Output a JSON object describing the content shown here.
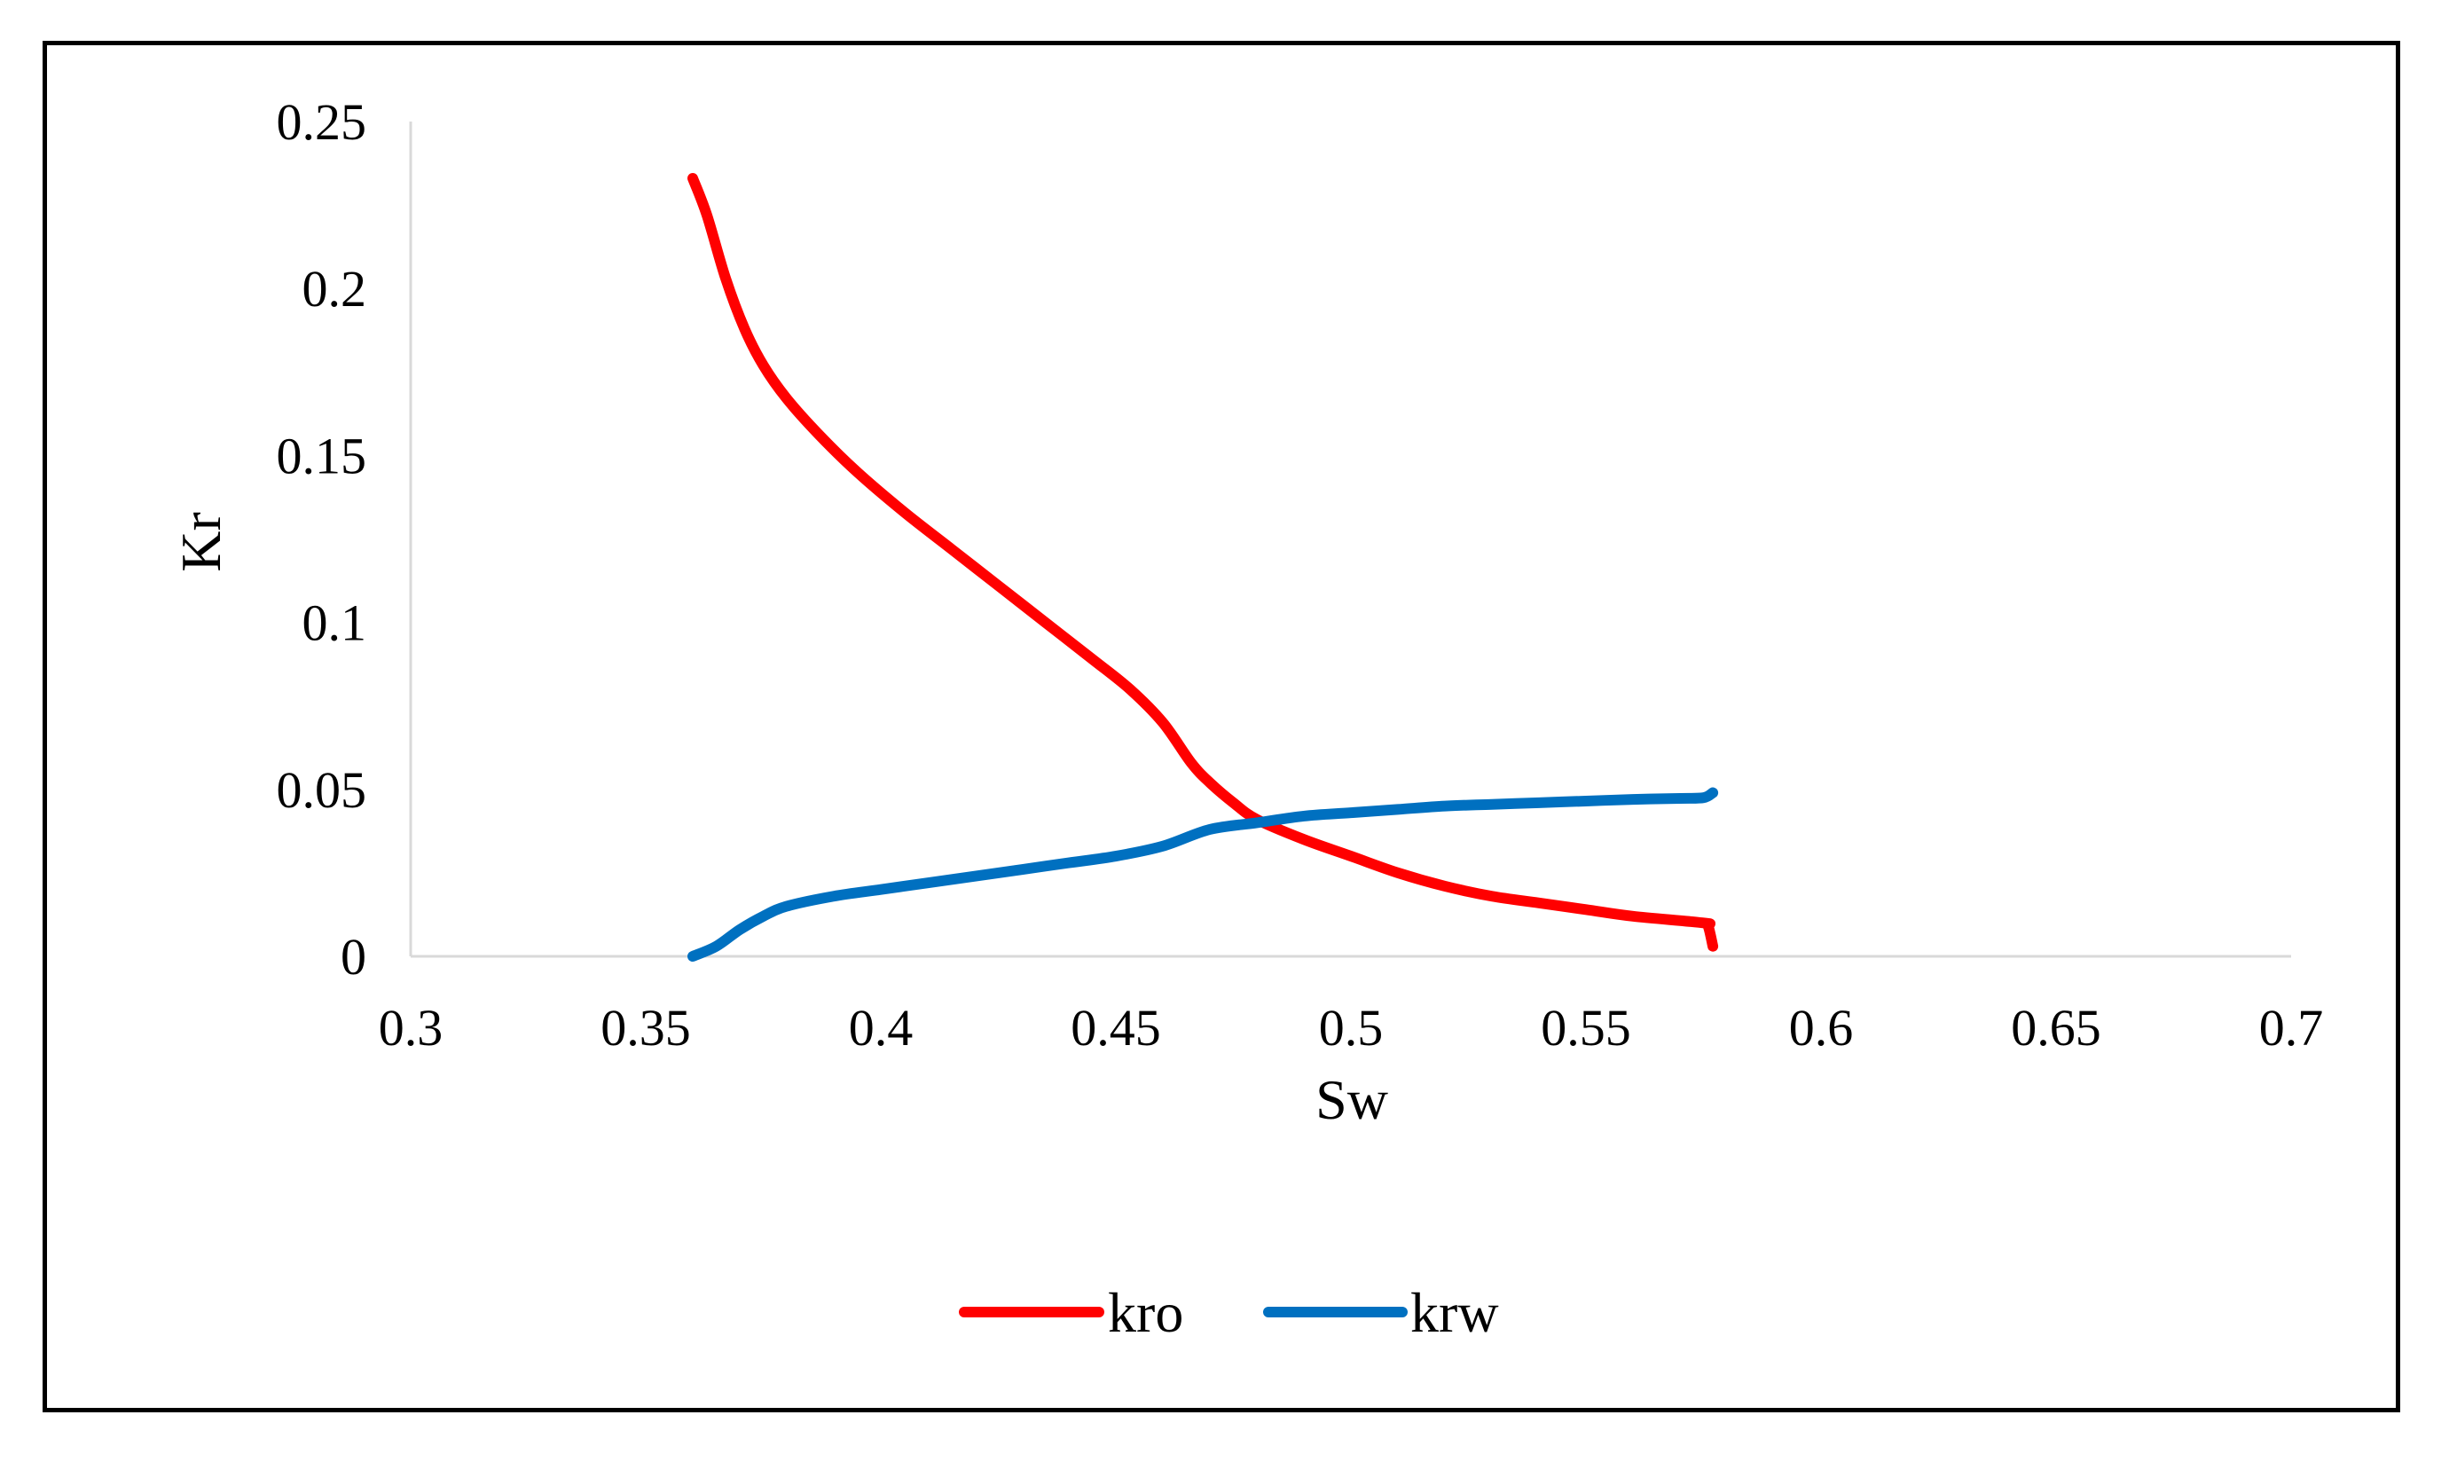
{
  "chart_data": {
    "type": "line",
    "title": "",
    "xlabel": "Sw",
    "ylabel": "Kr",
    "xlim": [
      0.3,
      0.7
    ],
    "ylim": [
      0,
      0.25
    ],
    "grid": false,
    "legend_position": "bottom",
    "x_ticks": [
      "0.3",
      "0.35",
      "0.4",
      "0.45",
      "0.5",
      "0.55",
      "0.6",
      "0.65",
      "0.7"
    ],
    "y_ticks": [
      "0",
      "0.05",
      "0.1",
      "0.15",
      "0.2",
      "0.25"
    ],
    "x_tick_values": [
      0.3,
      0.35,
      0.4,
      0.45,
      0.5,
      0.55,
      0.6,
      0.65,
      0.7
    ],
    "y_tick_values": [
      0,
      0.05,
      0.1,
      0.15,
      0.2,
      0.25
    ],
    "series": [
      {
        "name": "kro",
        "color": "#ff0000",
        "points": [
          [
            0.36,
            0.233
          ],
          [
            0.363,
            0.222
          ],
          [
            0.367,
            0.203
          ],
          [
            0.371,
            0.188
          ],
          [
            0.375,
            0.177
          ],
          [
            0.38,
            0.167
          ],
          [
            0.387,
            0.156
          ],
          [
            0.395,
            0.145
          ],
          [
            0.405,
            0.133
          ],
          [
            0.415,
            0.122
          ],
          [
            0.425,
            0.111
          ],
          [
            0.435,
            0.1
          ],
          [
            0.445,
            0.089
          ],
          [
            0.453,
            0.08
          ],
          [
            0.46,
            0.07
          ],
          [
            0.466,
            0.058
          ],
          [
            0.47,
            0.052
          ],
          [
            0.475,
            0.046
          ],
          [
            0.48,
            0.041
          ],
          [
            0.49,
            0.035
          ],
          [
            0.5,
            0.03
          ],
          [
            0.51,
            0.025
          ],
          [
            0.52,
            0.021
          ],
          [
            0.53,
            0.018
          ],
          [
            0.54,
            0.016
          ],
          [
            0.55,
            0.014
          ],
          [
            0.56,
            0.012
          ],
          [
            0.575,
            0.01
          ],
          [
            0.576,
            0.009
          ],
          [
            0.577,
            0.003
          ]
        ]
      },
      {
        "name": "krw",
        "color": "#0070c0",
        "points": [
          [
            0.36,
            0.0
          ],
          [
            0.365,
            0.003
          ],
          [
            0.37,
            0.008
          ],
          [
            0.375,
            0.012
          ],
          [
            0.38,
            0.015
          ],
          [
            0.39,
            0.018
          ],
          [
            0.4,
            0.02
          ],
          [
            0.41,
            0.022
          ],
          [
            0.42,
            0.024
          ],
          [
            0.43,
            0.026
          ],
          [
            0.44,
            0.028
          ],
          [
            0.45,
            0.03
          ],
          [
            0.46,
            0.033
          ],
          [
            0.47,
            0.038
          ],
          [
            0.48,
            0.04
          ],
          [
            0.49,
            0.042
          ],
          [
            0.5,
            0.043
          ],
          [
            0.51,
            0.044
          ],
          [
            0.52,
            0.045
          ],
          [
            0.53,
            0.0455
          ],
          [
            0.54,
            0.046
          ],
          [
            0.55,
            0.0465
          ],
          [
            0.56,
            0.047
          ],
          [
            0.57,
            0.0473
          ],
          [
            0.575,
            0.0475
          ],
          [
            0.577,
            0.049
          ]
        ]
      }
    ]
  }
}
